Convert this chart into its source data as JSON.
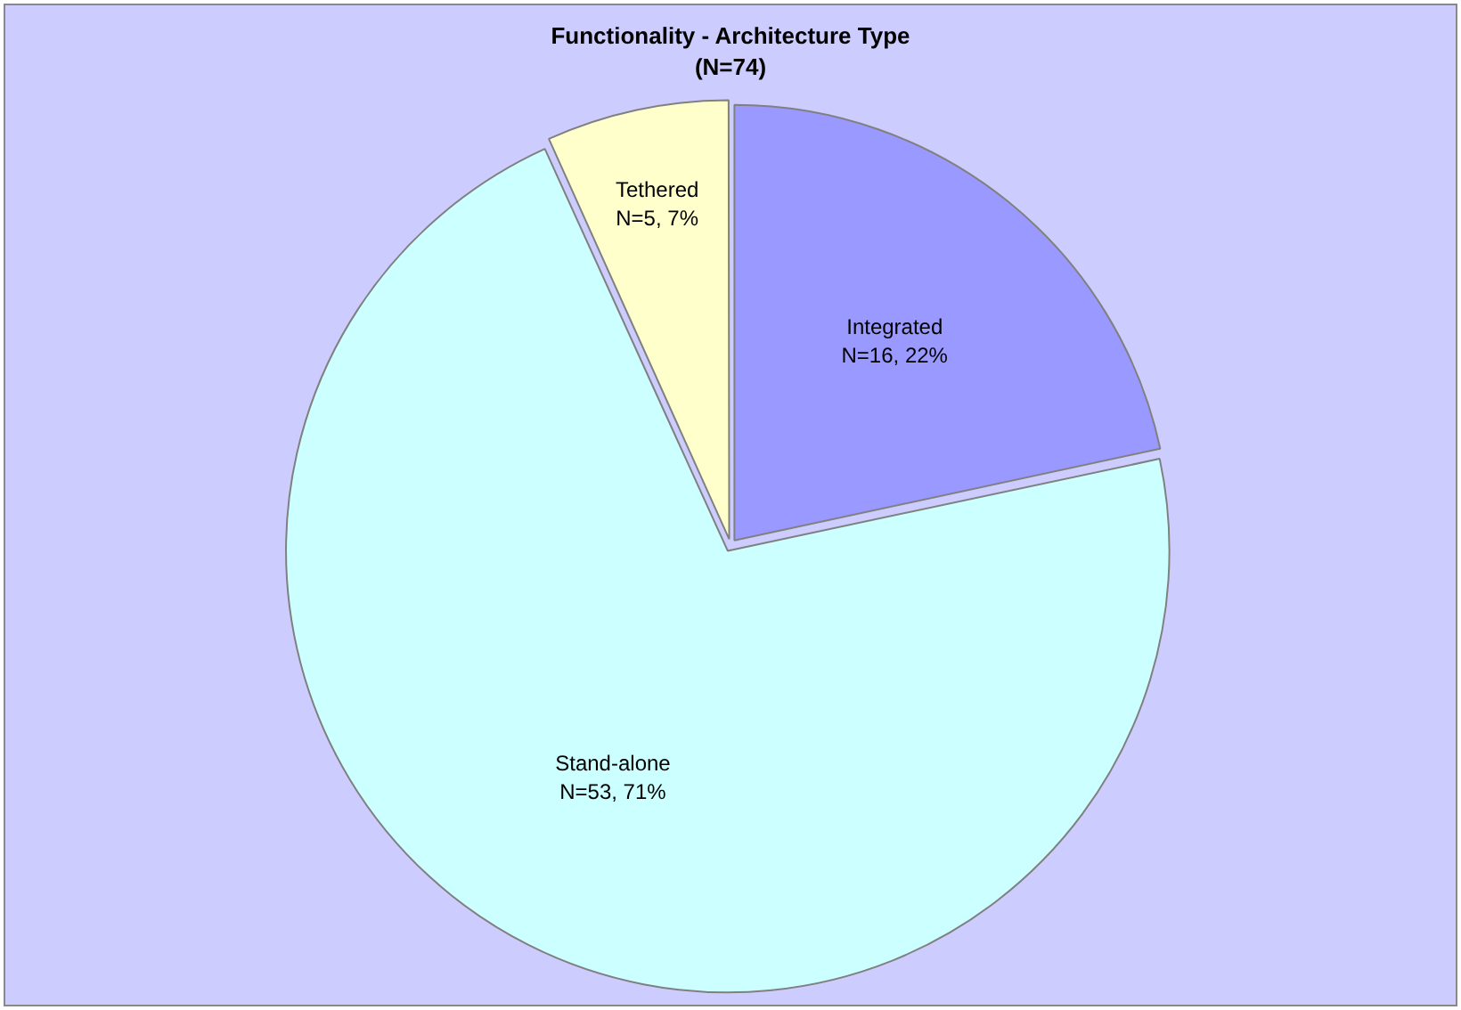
{
  "chart_data": {
    "type": "pie",
    "title": "Functionality - Architecture Type",
    "subtitle": "(N=74)",
    "categories": [
      "Integrated",
      "Stand-alone",
      "Tethered"
    ],
    "values": [
      16,
      53,
      5
    ],
    "value_labels": [
      "N=16, 22%",
      "N=53, 71%",
      "N=5, 7%"
    ],
    "colors": [
      "#9999ff",
      "#ccffff",
      "#ffffcc"
    ],
    "legend": false
  }
}
